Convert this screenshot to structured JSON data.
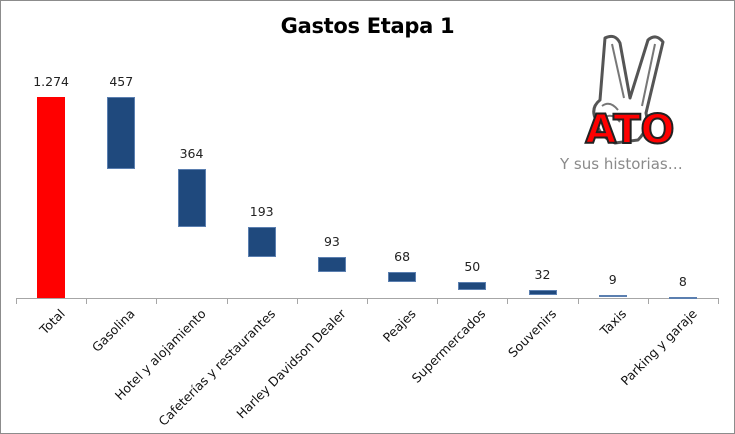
{
  "chart_data": {
    "type": "waterfall",
    "title": "Gastos Etapa 1",
    "categories": [
      "Total",
      "Gasolina",
      "Hotel y alojamiento",
      "Cafeterías y restaurantes",
      "Harley Davidson Dealer",
      "Peajes",
      "Supermercados",
      "Souvenirs",
      "Taxis",
      "Parking y garaje"
    ],
    "values": [
      1274,
      457,
      364,
      193,
      93,
      68,
      50,
      32,
      9,
      8
    ],
    "value_labels": [
      "1.274",
      "457",
      "364",
      "193",
      "93",
      "68",
      "50",
      "32",
      "9",
      "8"
    ],
    "colors": {
      "total": "#ff0000",
      "step": "#1f497d"
    },
    "xlabel": "",
    "ylabel": "",
    "ylim": [
      0,
      1274
    ],
    "grid": false,
    "legend": null
  },
  "logo": {
    "text": "ATO",
    "slogan": "Y sus historias…"
  }
}
